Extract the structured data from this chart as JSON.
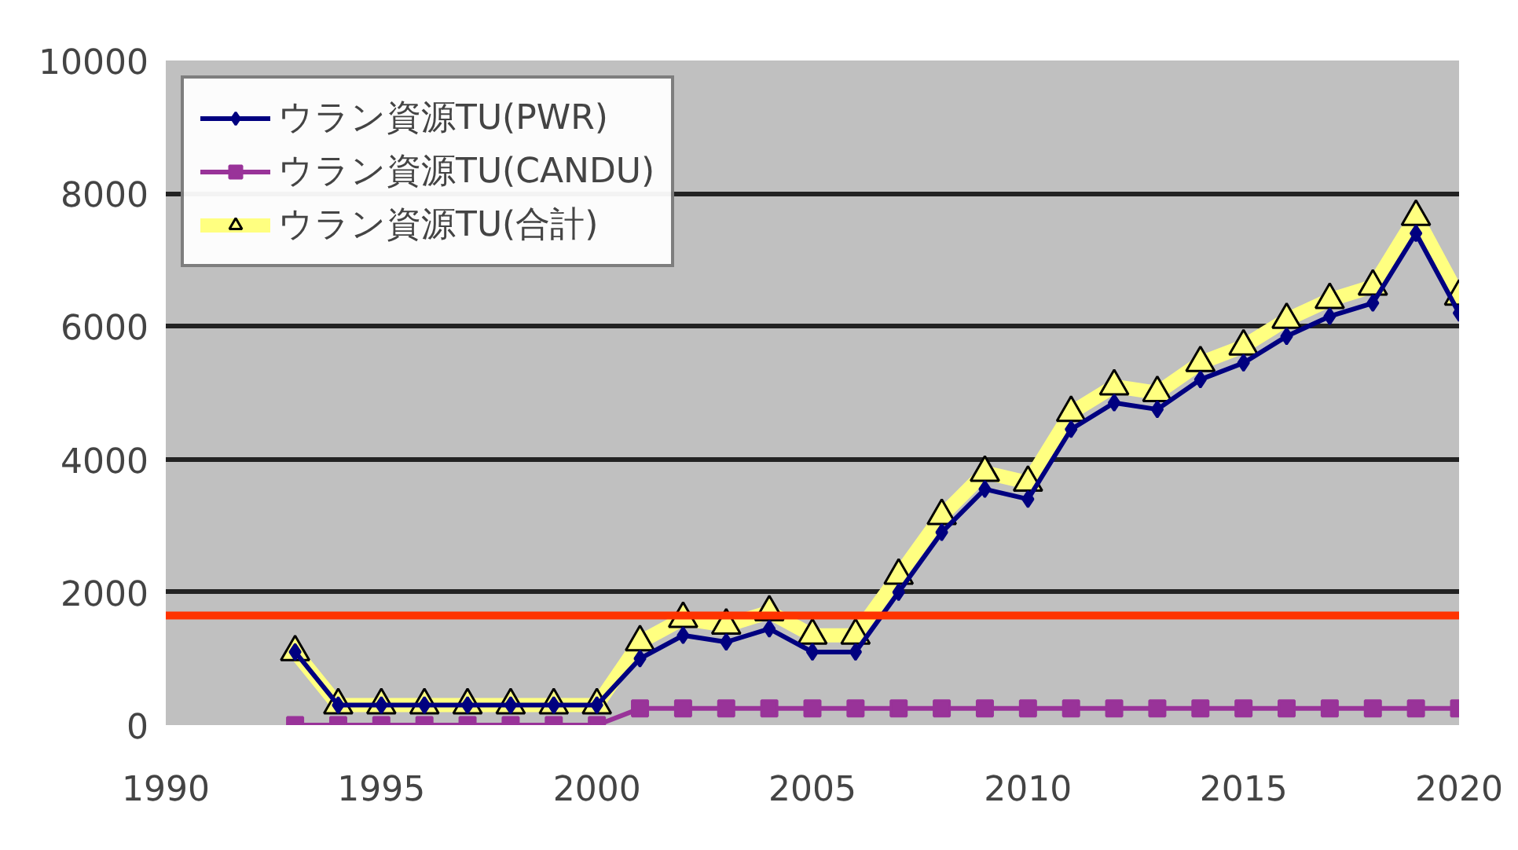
{
  "chart_data": {
    "type": "line",
    "x": [
      1993,
      1994,
      1995,
      1996,
      1997,
      1998,
      1999,
      2000,
      2001,
      2002,
      2003,
      2004,
      2005,
      2006,
      2007,
      2008,
      2009,
      2010,
      2011,
      2012,
      2013,
      2014,
      2015,
      2016,
      2017,
      2018,
      2019,
      2020
    ],
    "series": [
      {
        "name": "ウラン資源TU(PWR)",
        "color": "#000080",
        "marker": "diamond",
        "values": [
          1100,
          300,
          300,
          300,
          300,
          300,
          300,
          300,
          1000,
          1350,
          1250,
          1450,
          1100,
          1100,
          2000,
          2900,
          3550,
          3400,
          4450,
          4850,
          4750,
          5200,
          5450,
          5850,
          6150,
          6350,
          7400,
          6200
        ]
      },
      {
        "name": "ウラン資源TU(CANDU)",
        "color": "#993399",
        "marker": "square",
        "values": [
          0,
          0,
          0,
          0,
          0,
          0,
          0,
          0,
          250,
          250,
          250,
          250,
          250,
          250,
          250,
          250,
          250,
          250,
          250,
          250,
          250,
          250,
          250,
          250,
          250,
          250,
          250,
          250
        ]
      },
      {
        "name": "ウラン資源TU(合計)",
        "color": "#ffff80",
        "marker": "triangle",
        "values": [
          1100,
          300,
          300,
          300,
          300,
          300,
          300,
          300,
          1250,
          1600,
          1500,
          1700,
          1350,
          1350,
          2250,
          3150,
          3800,
          3650,
          4700,
          5100,
          5000,
          5450,
          5700,
          6100,
          6400,
          6600,
          7650,
          6450
        ]
      }
    ],
    "xlim": [
      1990,
      2020
    ],
    "xticks": [
      1990,
      1995,
      2000,
      2005,
      2010,
      2015,
      2020
    ],
    "ylim": [
      0,
      10000
    ],
    "yticks": [
      0,
      2000,
      4000,
      6000,
      8000,
      10000
    ],
    "ref_lines": [
      {
        "axis": "y",
        "value": 1650,
        "color": "#ff3300"
      }
    ],
    "grid": "y",
    "legend": "top left"
  }
}
